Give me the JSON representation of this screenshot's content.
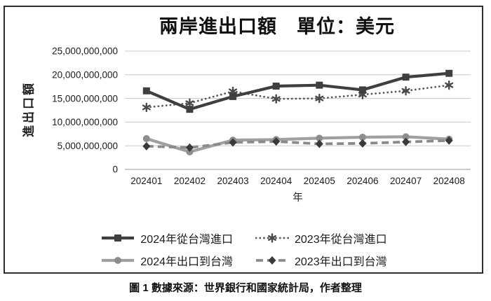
{
  "figure": {
    "caption": "圖 1 數據來源：世界銀行和國家統計局，作者整理"
  },
  "chart_data": {
    "type": "line",
    "title": "兩岸進出口額　單位：美元",
    "xlabel": "年",
    "ylabel": "進出口額",
    "categories": [
      "202401",
      "202402",
      "202403",
      "202404",
      "202405",
      "202406",
      "202407",
      "202408"
    ],
    "ylim": [
      0,
      25000000000
    ],
    "grid": "horizontal",
    "legend_position": "bottom",
    "ytick_values": [
      0,
      5000000000,
      10000000000,
      15000000000,
      20000000000,
      25000000000
    ],
    "ytick_labels": [
      "0",
      "5,000,000,000",
      "10,000,000,000",
      "15,000,000,000",
      "20,000,000,000",
      "25,000,000,000"
    ],
    "series": [
      {
        "name": "2024年從台灣進口",
        "marker": "square",
        "line_style": "solid",
        "color": "#3f3f3f",
        "marker_color": "#3f3f3f",
        "values": [
          16600000000,
          12700000000,
          15400000000,
          17600000000,
          17800000000,
          16800000000,
          19500000000,
          20300000000
        ]
      },
      {
        "name": "2023年從台灣進口",
        "marker": "star",
        "line_style": "dotted",
        "color": "#595959",
        "marker_color": "#4a4a4a",
        "values": [
          13100000000,
          14000000000,
          16500000000,
          14900000000,
          15000000000,
          15800000000,
          16600000000,
          17800000000
        ]
      },
      {
        "name": "2024年出口到台灣",
        "marker": "circle",
        "line_style": "solid",
        "color": "#a0a0a0",
        "marker_color": "#8e8e8e",
        "values": [
          6500000000,
          3700000000,
          6200000000,
          6300000000,
          6600000000,
          6800000000,
          6900000000,
          6400000000
        ]
      },
      {
        "name": "2023年出口到台灣",
        "marker": "diamond",
        "line_style": "dashed",
        "color": "#8a8a8a",
        "marker_color": "#3a3a3a",
        "values": [
          4900000000,
          4600000000,
          5700000000,
          5900000000,
          5400000000,
          5500000000,
          5800000000,
          6100000000
        ]
      }
    ]
  }
}
